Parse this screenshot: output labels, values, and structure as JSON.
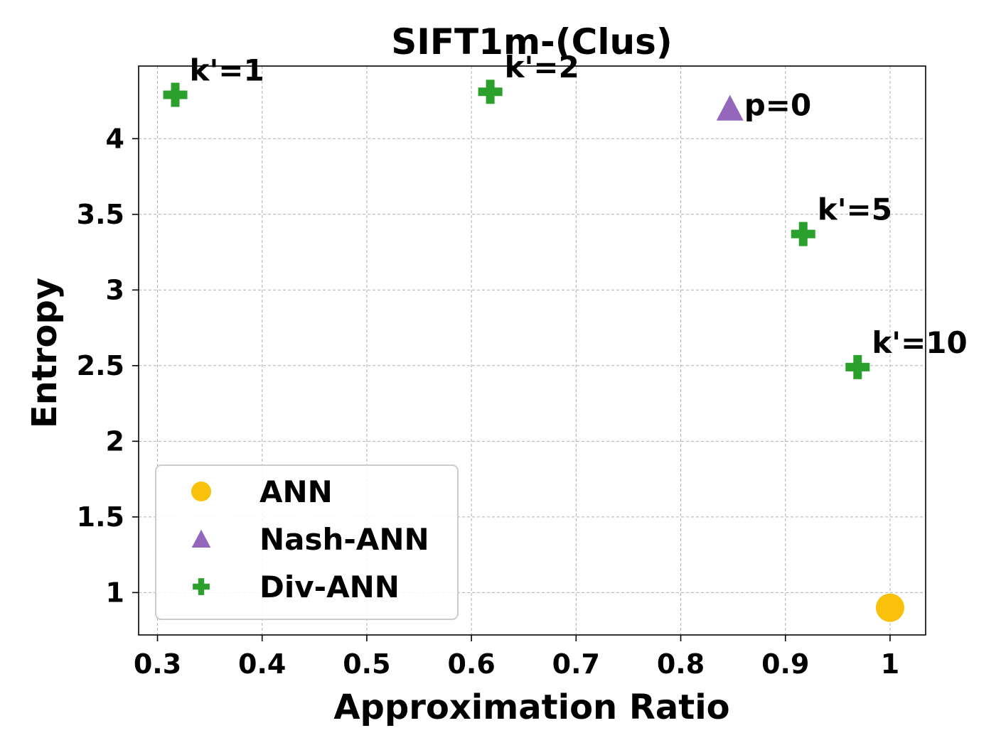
{
  "chart_data": {
    "type": "scatter",
    "title": "SIFT1m-(Clus)",
    "xlabel": "Approximation Ratio",
    "ylabel": "Entropy",
    "xlim": [
      0.282,
      1.034
    ],
    "ylim": [
      0.72,
      4.48
    ],
    "xticks": [
      {
        "value": 0.3,
        "label": "0.3"
      },
      {
        "value": 0.4,
        "label": "0.4"
      },
      {
        "value": 0.5,
        "label": "0.5"
      },
      {
        "value": 0.6,
        "label": "0.6"
      },
      {
        "value": 0.7,
        "label": "0.7"
      },
      {
        "value": 0.8,
        "label": "0.8"
      },
      {
        "value": 0.9,
        "label": "0.9"
      },
      {
        "value": 1.0,
        "label": "1"
      }
    ],
    "yticks": [
      {
        "value": 1.0,
        "label": "1"
      },
      {
        "value": 1.5,
        "label": "1.5"
      },
      {
        "value": 2.0,
        "label": "2"
      },
      {
        "value": 2.5,
        "label": "2.5"
      },
      {
        "value": 3.0,
        "label": "3"
      },
      {
        "value": 3.5,
        "label": "3.5"
      },
      {
        "value": 4.0,
        "label": "4"
      }
    ],
    "grid": true,
    "legend_position": "bottom-left",
    "series": [
      {
        "name": "ANN",
        "marker": "circle",
        "color": "#f9c00c",
        "points": [
          {
            "x": 1.0,
            "y": 0.9,
            "label": ""
          }
        ]
      },
      {
        "name": "Nash-ANN",
        "marker": "triangle",
        "color": "#9467bd",
        "points": [
          {
            "x": 0.847,
            "y": 4.2,
            "label": "p=0"
          }
        ]
      },
      {
        "name": "Div-ANN",
        "marker": "plus",
        "color": "#2ca02c",
        "points": [
          {
            "x": 0.317,
            "y": 4.29,
            "label": "k'=1"
          },
          {
            "x": 0.618,
            "y": 4.31,
            "label": "k'=2"
          },
          {
            "x": 0.917,
            "y": 3.37,
            "label": "k'=5"
          },
          {
            "x": 0.969,
            "y": 2.49,
            "label": "k'=10"
          }
        ]
      }
    ]
  }
}
